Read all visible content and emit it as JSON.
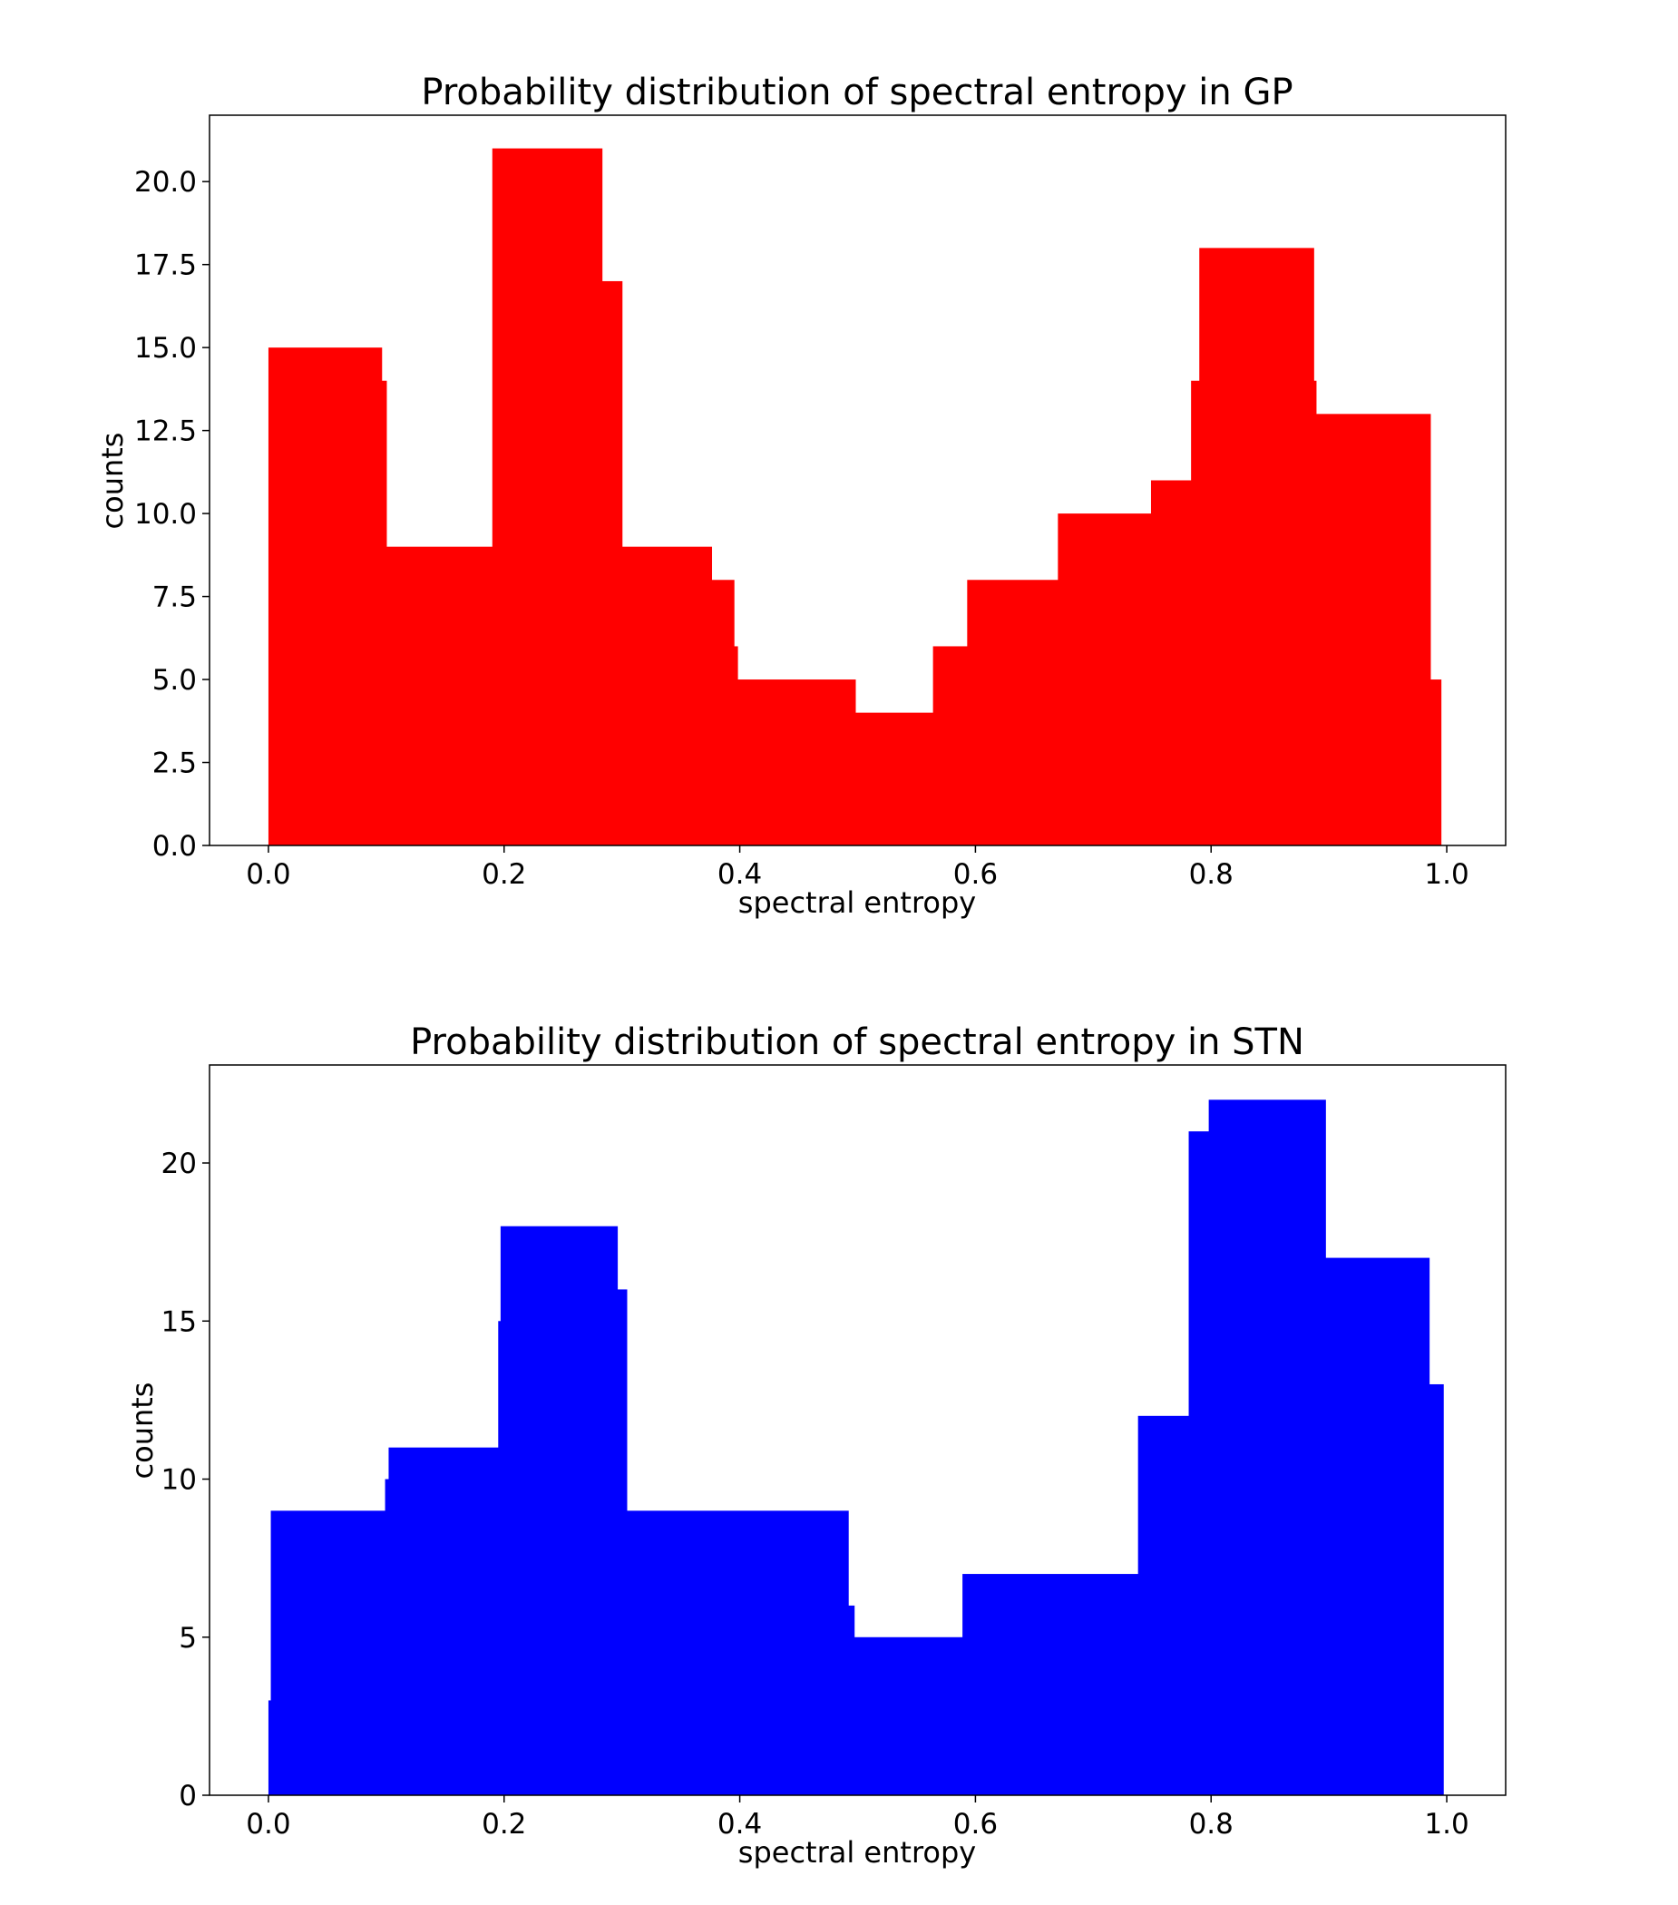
{
  "colors": {
    "gp": "#ff0000",
    "stn": "#0000ff",
    "axes": "#000000",
    "background": "#ffffff"
  },
  "chart_data": [
    {
      "type": "area",
      "title": "Probability distribution of spectral entropy in GP",
      "xlabel": "spectral entropy",
      "ylabel": "counts",
      "xlim": [
        -0.05,
        1.05
      ],
      "ylim": [
        0,
        22
      ],
      "grid": false,
      "legend": "none",
      "xticks": [
        0.0,
        0.2,
        0.4,
        0.6,
        0.8,
        1.0
      ],
      "xtick_labels": [
        "0.0",
        "0.2",
        "0.4",
        "0.6",
        "0.8",
        "1.0"
      ],
      "yticks": [
        0,
        2.5,
        5,
        7.5,
        10,
        12.5,
        15,
        17.5,
        20
      ],
      "ytick_labels": [
        "0.0",
        "2.5",
        "5.0",
        "7.5",
        "10.0",
        "12.5",
        "15.0",
        "17.5",
        "20.0"
      ],
      "series": [
        {
          "color": "#ff0000",
          "steps": [
            {
              "x0": 0.0,
              "x1": 0.096,
              "y": 15
            },
            {
              "x0": 0.096,
              "x1": 0.1,
              "y": 14
            },
            {
              "x0": 0.1,
              "x1": 0.19,
              "y": 9
            },
            {
              "x0": 0.19,
              "x1": 0.283,
              "y": 21
            },
            {
              "x0": 0.283,
              "x1": 0.3,
              "y": 17
            },
            {
              "x0": 0.3,
              "x1": 0.376,
              "y": 9
            },
            {
              "x0": 0.376,
              "x1": 0.395,
              "y": 8
            },
            {
              "x0": 0.395,
              "x1": 0.398,
              "y": 6
            },
            {
              "x0": 0.398,
              "x1": 0.498,
              "y": 5
            },
            {
              "x0": 0.498,
              "x1": 0.564,
              "y": 4
            },
            {
              "x0": 0.564,
              "x1": 0.593,
              "y": 6
            },
            {
              "x0": 0.593,
              "x1": 0.67,
              "y": 8
            },
            {
              "x0": 0.67,
              "x1": 0.749,
              "y": 10
            },
            {
              "x0": 0.749,
              "x1": 0.783,
              "y": 11
            },
            {
              "x0": 0.783,
              "x1": 0.79,
              "y": 14
            },
            {
              "x0": 0.79,
              "x1": 0.887,
              "y": 18
            },
            {
              "x0": 0.887,
              "x1": 0.889,
              "y": 14
            },
            {
              "x0": 0.889,
              "x1": 0.986,
              "y": 13
            },
            {
              "x0": 0.986,
              "x1": 0.995,
              "y": 5
            }
          ]
        }
      ]
    },
    {
      "type": "area",
      "title": "Probability distribution of spectral entropy in STN",
      "xlabel": "spectral entropy",
      "ylabel": "counts",
      "xlim": [
        -0.05,
        1.05
      ],
      "ylim": [
        0,
        23.1
      ],
      "grid": false,
      "legend": "none",
      "xticks": [
        0.0,
        0.2,
        0.4,
        0.6,
        0.8,
        1.0
      ],
      "xtick_labels": [
        "0.0",
        "0.2",
        "0.4",
        "0.6",
        "0.8",
        "1.0"
      ],
      "yticks": [
        0,
        5,
        10,
        15,
        20
      ],
      "ytick_labels": [
        "0",
        "5",
        "10",
        "15",
        "20"
      ],
      "series": [
        {
          "color": "#0000ff",
          "steps": [
            {
              "x0": 0.0,
              "x1": 0.002,
              "y": 3
            },
            {
              "x0": 0.002,
              "x1": 0.099,
              "y": 9
            },
            {
              "x0": 0.099,
              "x1": 0.102,
              "y": 10
            },
            {
              "x0": 0.102,
              "x1": 0.195,
              "y": 11
            },
            {
              "x0": 0.195,
              "x1": 0.197,
              "y": 15
            },
            {
              "x0": 0.197,
              "x1": 0.296,
              "y": 18
            },
            {
              "x0": 0.296,
              "x1": 0.304,
              "y": 16
            },
            {
              "x0": 0.304,
              "x1": 0.492,
              "y": 9
            },
            {
              "x0": 0.492,
              "x1": 0.497,
              "y": 6
            },
            {
              "x0": 0.497,
              "x1": 0.589,
              "y": 5
            },
            {
              "x0": 0.589,
              "x1": 0.738,
              "y": 7
            },
            {
              "x0": 0.738,
              "x1": 0.781,
              "y": 12
            },
            {
              "x0": 0.781,
              "x1": 0.798,
              "y": 21
            },
            {
              "x0": 0.798,
              "x1": 0.897,
              "y": 22
            },
            {
              "x0": 0.897,
              "x1": 0.985,
              "y": 17
            },
            {
              "x0": 0.985,
              "x1": 0.997,
              "y": 13
            }
          ]
        }
      ]
    }
  ]
}
